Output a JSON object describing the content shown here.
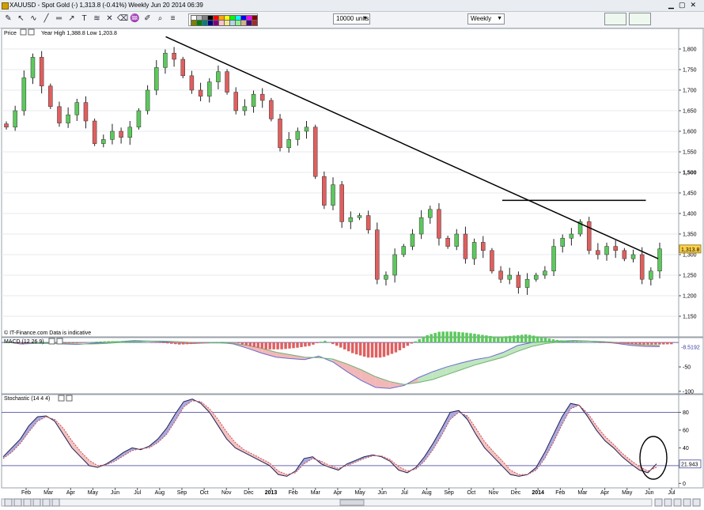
{
  "window": {
    "title": "XAUUSD - Spot Gold (-)    1,313.8 (-0.41%)    Weekly  Jun 20 2014 06:39"
  },
  "toolbar": {
    "units": "10000 units",
    "period": "Weekly",
    "swatch_colors": [
      "#ffffff",
      "#c0c0c0",
      "#808080",
      "#000000",
      "#ff0000",
      "#ffa500",
      "#ffff00",
      "#00ff00",
      "#00ffff",
      "#0000ff",
      "#ff00ff",
      "#800000",
      "#808000",
      "#008000",
      "#008080",
      "#000080",
      "#800080",
      "#ffc0cb",
      "#f0e68c",
      "#add8e6",
      "#90ee90",
      "#d2b48c",
      "#4b0082",
      "#a52a2a"
    ]
  },
  "colors": {
    "up": "#5cc95c",
    "down": "#e05f5f",
    "macd_pos": "#5cc95c",
    "macd_neg": "#e06060",
    "stoch_k": "#5f5fb8",
    "stoch_d": "#e08a8a",
    "level_line": "#6a6ab0"
  },
  "chart_data": [
    {
      "type": "candlestick",
      "panel_label": "Price",
      "annotation": "Year High 1,388.8  Low 1,203.8",
      "source": "© IT-Finance.com  Data is indicative",
      "ylim": [
        1100,
        1850
      ],
      "y_ticks": [
        1150,
        1200,
        1250,
        1300,
        1350,
        1400,
        1450,
        1500,
        1550,
        1600,
        1650,
        1700,
        1750,
        1800
      ],
      "y_tick_labels": [
        "1,150",
        "1,200",
        "1,250",
        "1,300",
        "1,350",
        "1,400",
        "1,450",
        "1,500",
        "1,550",
        "1,600",
        "1,650",
        "1,700",
        "1,750",
        "1,800"
      ],
      "last_price": 1313.8,
      "last_price_label": "1,313.8",
      "close_path": [
        1610,
        1650,
        1730,
        1780,
        1710,
        1660,
        1620,
        1640,
        1670,
        1625,
        1570,
        1580,
        1600,
        1585,
        1610,
        1650,
        1700,
        1755,
        1790,
        1775,
        1735,
        1700,
        1685,
        1720,
        1745,
        1695,
        1650,
        1660,
        1690,
        1675,
        1630,
        1560,
        1580,
        1600,
        1610,
        1490,
        1420,
        1470,
        1380,
        1390,
        1395,
        1360,
        1240,
        1250,
        1300,
        1320,
        1350,
        1390,
        1410,
        1340,
        1320,
        1350,
        1290,
        1330,
        1310,
        1260,
        1240,
        1250,
        1220,
        1240,
        1250,
        1260,
        1320,
        1340,
        1350,
        1380,
        1310,
        1300,
        1320,
        1310,
        1290,
        1300,
        1240,
        1260,
        1314
      ],
      "trendlines": [
        {
          "from": {
            "week": 40,
            "price": 1830
          },
          "to": {
            "week": 160,
            "price": 1290
          }
        },
        {
          "from": {
            "week": 122,
            "price": 1432
          },
          "to": {
            "week": 157,
            "price": 1432
          }
        }
      ]
    },
    {
      "type": "histogram",
      "panel_label": "MACD (12 26 9)",
      "ylim": [
        -105,
        10
      ],
      "y_ticks": [
        -100,
        -50
      ],
      "y_tick_labels": [
        "-100",
        "-50"
      ],
      "last_value": -8.5192,
      "last_value_label": "-8.5192",
      "macd": [
        1,
        -3,
        -2,
        -1,
        -3,
        -4,
        -2,
        0,
        2,
        4,
        3,
        2,
        -1,
        -2,
        -1,
        0,
        -3,
        -12,
        -22,
        -30,
        -33,
        -35,
        -28,
        -40,
        -60,
        -78,
        -92,
        -94,
        -88,
        -72,
        -60,
        -50,
        -42,
        -35,
        -30,
        -20,
        -6,
        0,
        2,
        3,
        4,
        3,
        1,
        -2,
        -6,
        -8,
        -8.5
      ],
      "signal": [
        0,
        -1,
        -2,
        -2,
        -2,
        -3,
        -3,
        -2,
        0,
        2,
        3,
        3,
        2,
        0,
        -1,
        -1,
        -2,
        -6,
        -12,
        -20,
        -25,
        -30,
        -31,
        -34,
        -44,
        -56,
        -70,
        -80,
        -86,
        -82,
        -76,
        -66,
        -56,
        -46,
        -38,
        -30,
        -18,
        -8,
        -2,
        1,
        3,
        3,
        2,
        0,
        -3,
        -5,
        -6
      ]
    },
    {
      "type": "line",
      "panel_label": "Stochastic (14 4 4)",
      "ylim": [
        -5,
        100
      ],
      "y_ticks": [
        0,
        20,
        40,
        60,
        80
      ],
      "y_tick_labels": [
        "0",
        "20",
        "40",
        "60",
        "80"
      ],
      "levels": [
        20,
        80
      ],
      "last_value": 21.943,
      "last_value_label": "21.943",
      "k": [
        30,
        40,
        50,
        65,
        75,
        76,
        70,
        55,
        40,
        30,
        20,
        18,
        22,
        28,
        35,
        40,
        38,
        42,
        50,
        62,
        78,
        92,
        95,
        90,
        80,
        65,
        50,
        40,
        35,
        30,
        25,
        20,
        10,
        8,
        14,
        28,
        30,
        22,
        18,
        15,
        22,
        26,
        30,
        32,
        30,
        25,
        15,
        12,
        18,
        30,
        45,
        62,
        80,
        82,
        72,
        55,
        40,
        30,
        20,
        10,
        8,
        10,
        18,
        35,
        55,
        75,
        90,
        88,
        75,
        60,
        48,
        40,
        30,
        22,
        15,
        12,
        22
      ],
      "d": [
        28,
        35,
        45,
        58,
        70,
        75,
        72,
        62,
        48,
        36,
        26,
        20,
        21,
        25,
        31,
        37,
        39,
        40,
        46,
        55,
        70,
        86,
        93,
        92,
        84,
        72,
        58,
        46,
        38,
        33,
        28,
        23,
        14,
        10,
        12,
        22,
        28,
        25,
        20,
        17,
        20,
        24,
        28,
        31,
        31,
        27,
        19,
        14,
        16,
        25,
        38,
        54,
        72,
        80,
        76,
        62,
        47,
        36,
        26,
        15,
        10,
        10,
        15,
        28,
        46,
        66,
        84,
        88,
        79,
        65,
        53,
        44,
        34,
        26,
        19,
        14,
        18
      ]
    }
  ],
  "x_axis": {
    "labels": [
      "Feb",
      "Mar",
      "Apr",
      "May",
      "Jun",
      "Jul",
      "Aug",
      "Sep",
      "Oct",
      "Nov",
      "Dec",
      "2013",
      "Feb",
      "Mar",
      "Apr",
      "May",
      "Jun",
      "Jul",
      "Aug",
      "Sep",
      "Oct",
      "Nov",
      "Dec",
      "2014",
      "Feb",
      "Mar",
      "Apr",
      "May",
      "Jun",
      "Jul"
    ],
    "bold": [
      "2013",
      "2014"
    ]
  }
}
